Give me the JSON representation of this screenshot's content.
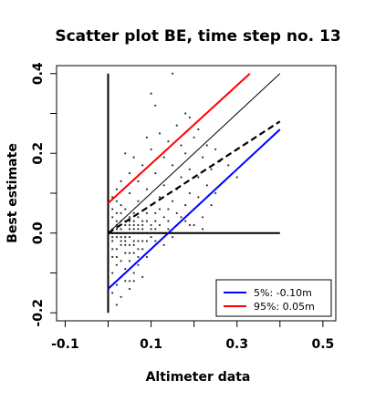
{
  "chart_data": {
    "type": "scatter",
    "title": "Scatter plot BE, time step no. 13",
    "xlabel": "Altimeter data",
    "ylabel": "Best estimate",
    "xlim": [
      -0.12,
      0.53
    ],
    "ylim": [
      -0.22,
      0.42
    ],
    "xticks": [
      -0.1,
      0.1,
      0.3,
      0.5
    ],
    "xtick_labels": [
      "-0.1",
      "0.1",
      "0.3",
      "0.5"
    ],
    "yticks": [
      -0.2,
      0.0,
      0.2,
      0.4
    ],
    "ytick_labels": [
      "-0.2",
      "0.0",
      "0.2",
      "0.4"
    ],
    "grid": false,
    "legend_position": "bottom-right",
    "reference_lines": [
      {
        "name": "vertical-axis-line",
        "x1": 0.0,
        "y1": -0.2,
        "x2": 0.0,
        "y2": 0.4,
        "color": "#000000",
        "style": "solid"
      },
      {
        "name": "horizontal-axis-line",
        "x1": 0.0,
        "y1": 0.0,
        "x2": 0.4,
        "y2": 0.0,
        "color": "#000000",
        "style": "solid"
      },
      {
        "name": "one-to-one-line",
        "x1": 0.0,
        "y1": 0.0,
        "x2": 0.4,
        "y2": 0.4,
        "color": "#000000",
        "style": "thin"
      },
      {
        "name": "fit-line",
        "x1": 0.0,
        "y1": 0.0,
        "x2": 0.4,
        "y2": 0.28,
        "color": "#000000",
        "style": "dashed"
      }
    ],
    "series": [
      {
        "name": "5%: -0.10m",
        "color": "#0000ff",
        "x": [
          0.0,
          0.4
        ],
        "y": [
          -0.14,
          0.26
        ]
      },
      {
        "name": "95%:  0.05m",
        "color": "#ff0000",
        "x": [
          0.0,
          0.33
        ],
        "y": [
          0.075,
          0.4
        ]
      }
    ],
    "scatter_points": [
      [
        0.15,
        0.4
      ],
      [
        0.1,
        0.35
      ],
      [
        0.11,
        0.32
      ],
      [
        0.18,
        0.3
      ],
      [
        0.19,
        0.29
      ],
      [
        0.16,
        0.27
      ],
      [
        0.21,
        0.26
      ],
      [
        0.12,
        0.25
      ],
      [
        0.09,
        0.24
      ],
      [
        0.14,
        0.23
      ],
      [
        0.2,
        0.24
      ],
      [
        0.17,
        0.22
      ],
      [
        0.23,
        0.22
      ],
      [
        0.25,
        0.21
      ],
      [
        0.18,
        0.2
      ],
      [
        0.1,
        0.21
      ],
      [
        0.04,
        0.2
      ],
      [
        0.06,
        0.19
      ],
      [
        0.13,
        0.19
      ],
      [
        0.22,
        0.19
      ],
      [
        0.26,
        0.18
      ],
      [
        0.08,
        0.17
      ],
      [
        0.15,
        0.17
      ],
      [
        0.19,
        0.16
      ],
      [
        0.24,
        0.16
      ],
      [
        0.28,
        0.17
      ],
      [
        0.05,
        0.15
      ],
      [
        0.11,
        0.15
      ],
      [
        0.17,
        0.14
      ],
      [
        0.21,
        0.14
      ],
      [
        0.27,
        0.13
      ],
      [
        0.3,
        0.14
      ],
      [
        0.03,
        0.13
      ],
      [
        0.07,
        0.13
      ],
      [
        0.13,
        0.12
      ],
      [
        0.23,
        0.12
      ],
      [
        0.02,
        0.11
      ],
      [
        0.09,
        0.11
      ],
      [
        0.16,
        0.11
      ],
      [
        0.19,
        0.1
      ],
      [
        0.25,
        0.1
      ],
      [
        0.05,
        0.1
      ],
      [
        0.12,
        0.09
      ],
      [
        0.21,
        0.09
      ],
      [
        0.01,
        0.09
      ],
      [
        0.07,
        0.08
      ],
      [
        0.15,
        0.08
      ],
      [
        0.18,
        0.07
      ],
      [
        0.24,
        0.07
      ],
      [
        0.03,
        0.07
      ],
      [
        0.1,
        0.07
      ],
      [
        0.14,
        0.06
      ],
      [
        0.2,
        0.06
      ],
      [
        0.02,
        0.05
      ],
      [
        0.06,
        0.05
      ],
      [
        0.09,
        0.05
      ],
      [
        0.13,
        0.04
      ],
      [
        0.17,
        0.04
      ],
      [
        0.22,
        0.04
      ],
      [
        0.01,
        0.04
      ],
      [
        0.04,
        0.03
      ],
      [
        0.08,
        0.03
      ],
      [
        0.11,
        0.03
      ],
      [
        0.16,
        0.02
      ],
      [
        0.19,
        0.02
      ],
      [
        0.02,
        0.02
      ],
      [
        0.05,
        0.02
      ],
      [
        0.07,
        0.01
      ],
      [
        0.1,
        0.01
      ],
      [
        0.14,
        0.01
      ],
      [
        0.22,
        0.01
      ],
      [
        0.01,
        0.01
      ],
      [
        0.03,
        0.0
      ],
      [
        0.06,
        0.0
      ],
      [
        0.08,
        -0.0
      ],
      [
        0.12,
        -0.0
      ],
      [
        0.15,
        -0.01
      ],
      [
        0.02,
        -0.01
      ],
      [
        0.04,
        -0.01
      ],
      [
        0.07,
        -0.02
      ],
      [
        0.09,
        -0.02
      ],
      [
        0.11,
        -0.02
      ],
      [
        0.13,
        -0.03
      ],
      [
        0.01,
        -0.02
      ],
      [
        0.03,
        -0.03
      ],
      [
        0.05,
        -0.03
      ],
      [
        0.08,
        -0.04
      ],
      [
        0.1,
        -0.04
      ],
      [
        0.02,
        -0.04
      ],
      [
        0.04,
        -0.05
      ],
      [
        0.06,
        -0.05
      ],
      [
        0.09,
        -0.06
      ],
      [
        0.01,
        -0.06
      ],
      [
        0.03,
        -0.07
      ],
      [
        0.05,
        -0.07
      ],
      [
        0.07,
        -0.08
      ],
      [
        0.02,
        -0.08
      ],
      [
        0.04,
        -0.09
      ],
      [
        0.06,
        -0.1
      ],
      [
        0.01,
        -0.1
      ],
      [
        0.03,
        -0.11
      ],
      [
        0.05,
        -0.12
      ],
      [
        0.02,
        -0.13
      ],
      [
        0.04,
        -0.12
      ],
      [
        0.06,
        -0.12
      ],
      [
        0.01,
        -0.15
      ],
      [
        0.03,
        -0.16
      ],
      [
        0.02,
        -0.18
      ],
      [
        0.0,
        -0.17
      ],
      [
        0.05,
        -0.14
      ],
      [
        0.08,
        -0.11
      ],
      [
        0.07,
        -0.06
      ],
      [
        0.0,
        0.02
      ],
      [
        0.0,
        -0.03
      ],
      [
        0.0,
        0.05
      ],
      [
        0.0,
        -0.06
      ],
      [
        0.0,
        0.08
      ],
      [
        0.0,
        -0.09
      ],
      [
        0.01,
        0.06
      ],
      [
        0.01,
        -0.04
      ],
      [
        0.02,
        0.08
      ],
      [
        0.02,
        -0.06
      ],
      [
        0.03,
        0.05
      ],
      [
        0.03,
        -0.02
      ],
      [
        0.04,
        0.06
      ],
      [
        0.04,
        -0.03
      ],
      [
        0.05,
        0.04
      ],
      [
        0.05,
        -0.05
      ],
      [
        0.06,
        0.03
      ],
      [
        0.06,
        -0.02
      ],
      [
        0.07,
        0.04
      ],
      [
        0.08,
        0.02
      ],
      [
        0.09,
        0.03
      ],
      [
        0.1,
        0.02
      ],
      [
        0.11,
        0.05
      ],
      [
        0.12,
        0.06
      ],
      [
        0.01,
        0.0
      ],
      [
        0.02,
        -0.0
      ],
      [
        0.03,
        0.01
      ],
      [
        0.04,
        0.0
      ],
      [
        0.05,
        0.01
      ],
      [
        0.06,
        0.02
      ],
      [
        0.07,
        -0.0
      ],
      [
        0.08,
        0.01
      ],
      [
        0.01,
        -0.01
      ],
      [
        0.02,
        0.01
      ],
      [
        0.03,
        -0.01
      ],
      [
        0.04,
        0.02
      ],
      [
        0.05,
        -0.01
      ],
      [
        0.06,
        -0.03
      ],
      [
        0.07,
        0.02
      ],
      [
        0.08,
        -0.02
      ],
      [
        0.02,
        0.03
      ],
      [
        0.03,
        0.03
      ],
      [
        0.04,
        -0.02
      ],
      [
        0.05,
        0.03
      ],
      [
        0.06,
        0.01
      ],
      [
        0.07,
        -0.04
      ],
      [
        0.09,
        0.0
      ],
      [
        0.1,
        -0.01
      ],
      [
        0.11,
        0.01
      ],
      [
        0.12,
        0.02
      ],
      [
        0.13,
        0.0
      ],
      [
        0.14,
        0.03
      ],
      [
        0.16,
        0.05
      ],
      [
        0.18,
        0.03
      ],
      [
        0.2,
        0.02
      ],
      [
        0.22,
        0.0
      ]
    ]
  }
}
